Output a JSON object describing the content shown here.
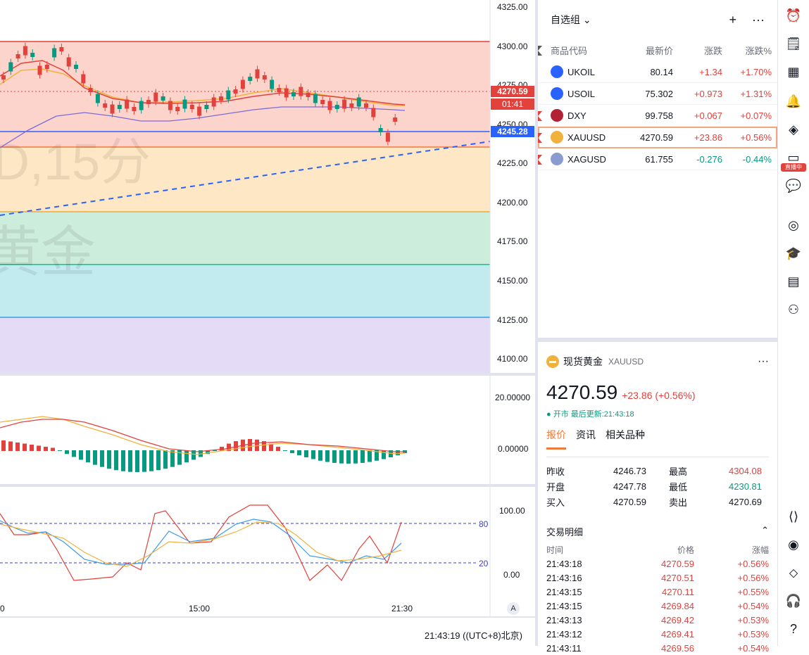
{
  "chart": {
    "watermark_symbol": "D,15分",
    "watermark_name": "黄金",
    "price_axis": [
      "4325.00",
      "4300.00",
      "4275.00",
      "4250.00",
      "4225.00",
      "4200.00",
      "4175.00",
      "4150.00",
      "4125.00",
      "4100.00"
    ],
    "current_price_tag": "4270.59",
    "countdown_tag": "01:41",
    "line_tag": "4245.28",
    "macd_axis": [
      "20.00000",
      "0.00000"
    ],
    "stoch_axis": [
      "100.00",
      "0.00"
    ],
    "stoch_levels": [
      "80",
      "20"
    ],
    "time_axis": [
      "0",
      "15:00",
      "21:30"
    ],
    "footer_time": "21:43:19 ((UTC+8)北京)",
    "auto_label": "A"
  },
  "watchlist": {
    "title": "自选组",
    "add_icon": "plus-icon",
    "more_icon": "more-icon",
    "headers": {
      "symbol": "商品代码",
      "last": "最新价",
      "change": "涨跌",
      "pct": "涨跌%"
    },
    "rows": [
      {
        "symbol": "UKOIL",
        "last": "80.14",
        "change": "+1.34",
        "pct": "+1.70%",
        "dir": "up",
        "flag": "none",
        "icon_color": "#2962ff"
      },
      {
        "symbol": "USOIL",
        "last": "75.302",
        "change": "+0.973",
        "pct": "+1.31%",
        "dir": "up",
        "flag": "none",
        "icon_color": "#2962ff"
      },
      {
        "symbol": "DXY",
        "last": "99.758",
        "change": "+0.067",
        "pct": "+0.07%",
        "dir": "up",
        "flag": "red",
        "icon_color": "#b22234"
      },
      {
        "symbol": "XAUUSD",
        "last": "4270.59",
        "change": "+23.86",
        "pct": "+0.56%",
        "dir": "up",
        "flag": "red",
        "icon_color": "#f0b23c"
      },
      {
        "symbol": "XAGUSD",
        "last": "61.755",
        "change": "-0.276",
        "pct": "-0.44%",
        "dir": "dn",
        "flag": "red",
        "icon_color": "#8a9bd0"
      }
    ]
  },
  "detail": {
    "name": "现货黄金",
    "code": "XAUUSD",
    "price": "4270.59",
    "change": "+23.86 (+0.56%)",
    "status": "● 开市 最后更新:21:43:18",
    "tabs": [
      "报价",
      "资讯",
      "相关品种"
    ],
    "stats": [
      {
        "k": "昨收",
        "v": "4246.73",
        "k2": "最高",
        "v2": "4304.08",
        "c2": "up"
      },
      {
        "k": "开盘",
        "v": "4247.78",
        "k2": "最低",
        "v2": "4230.81",
        "c2": "dn"
      },
      {
        "k": "买入",
        "v": "4270.59",
        "k2": "卖出",
        "v2": "4270.69",
        "c2": ""
      }
    ],
    "trades_title": "交易明细",
    "trades_headers": {
      "t": "时间",
      "p": "价格",
      "c": "涨幅"
    },
    "trades": [
      {
        "t": "21:43:18",
        "p": "4270.59",
        "c": "+0.56%"
      },
      {
        "t": "21:43:16",
        "p": "4270.51",
        "c": "+0.56%"
      },
      {
        "t": "21:43:15",
        "p": "4270.11",
        "c": "+0.55%"
      },
      {
        "t": "21:43:15",
        "p": "4269.84",
        "c": "+0.54%"
      },
      {
        "t": "21:43:13",
        "p": "4269.42",
        "c": "+0.53%"
      },
      {
        "t": "21:43:12",
        "p": "4269.41",
        "c": "+0.53%"
      },
      {
        "t": "21:43:11",
        "p": "4269.56",
        "c": "+0.54%"
      }
    ]
  },
  "toolbar": {
    "live_badge": "直播中",
    "icons": [
      "alarm-clock-icon",
      "notes-icon",
      "calendar-icon",
      "bell-icon",
      "layers-icon",
      "video-icon",
      "chat-icon",
      "target-icon",
      "graduation-cap-icon",
      "table-icon",
      "chart-network-icon",
      "compare-icon",
      "eye-icon",
      "handshake-icon",
      "headset-icon",
      "help-icon"
    ]
  },
  "colors": {
    "up": "#e2413c",
    "down": "#089981",
    "accent": "#f07a3c",
    "blue_line": "#2962ff"
  }
}
